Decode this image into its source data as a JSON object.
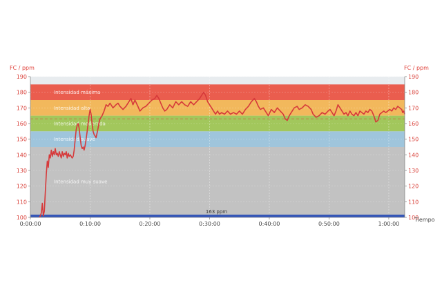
{
  "chart_data": {
    "type": "line",
    "xlabel": "Tiempo",
    "ylabel_left": "FC / ppm",
    "ylabel_right": "FC / ppm",
    "ylim": [
      100,
      190
    ],
    "xlim": [
      0,
      3760
    ],
    "yticks": [
      100,
      110,
      120,
      130,
      140,
      150,
      160,
      170,
      180,
      190
    ],
    "xticks": [
      {
        "t": 0,
        "label": "0:00:00"
      },
      {
        "t": 600,
        "label": "0:10:00"
      },
      {
        "t": 1200,
        "label": "0:20:00"
      },
      {
        "t": 1800,
        "label": "0:30:00"
      },
      {
        "t": 2400,
        "label": "0:40:00"
      },
      {
        "t": 3000,
        "label": "0:50:00"
      },
      {
        "t": 3600,
        "label": "1:00:00"
      }
    ],
    "zones": [
      {
        "label": "Intensidad máxima",
        "from": 175,
        "to": 185,
        "color": "#ea5d4e"
      },
      {
        "label": "Intensidad alta",
        "from": 165,
        "to": 175,
        "color": "#f2b85c"
      },
      {
        "label": "Intensidad moderada",
        "from": 155,
        "to": 165,
        "color": "#a2c75c"
      },
      {
        "label": "Intensidad suave",
        "from": 145,
        "to": 155,
        "color": "#9fc5dc"
      },
      {
        "label": "Intensidad muy suave",
        "from": 101,
        "to": 145,
        "color": "#c2c2c2"
      }
    ],
    "average": {
      "value": 163,
      "label": "163 ppm"
    },
    "grid": true,
    "series": [
      {
        "color": "#d6393a",
        "points": [
          [
            90,
            100
          ],
          [
            100,
            101
          ],
          [
            110,
            103
          ],
          [
            120,
            109
          ],
          [
            130,
            101
          ],
          [
            140,
            104
          ],
          [
            150,
            116
          ],
          [
            160,
            128
          ],
          [
            170,
            136
          ],
          [
            180,
            132
          ],
          [
            190,
            140
          ],
          [
            200,
            138
          ],
          [
            210,
            143
          ],
          [
            220,
            139
          ],
          [
            230,
            142
          ],
          [
            240,
            140
          ],
          [
            250,
            144
          ],
          [
            260,
            140
          ],
          [
            270,
            141
          ],
          [
            280,
            139
          ],
          [
            290,
            142
          ],
          [
            300,
            140
          ],
          [
            310,
            138
          ],
          [
            320,
            142
          ],
          [
            330,
            139
          ],
          [
            340,
            141
          ],
          [
            350,
            140
          ],
          [
            360,
            142
          ],
          [
            370,
            138
          ],
          [
            380,
            141
          ],
          [
            390,
            139
          ],
          [
            400,
            140
          ],
          [
            410,
            139
          ],
          [
            420,
            138
          ],
          [
            430,
            139
          ],
          [
            440,
            143
          ],
          [
            450,
            150
          ],
          [
            460,
            156
          ],
          [
            470,
            159
          ],
          [
            480,
            160
          ],
          [
            490,
            157
          ],
          [
            500,
            151
          ],
          [
            510,
            146
          ],
          [
            520,
            144
          ],
          [
            530,
            145
          ],
          [
            540,
            143
          ],
          [
            550,
            146
          ],
          [
            560,
            150
          ],
          [
            570,
            155
          ],
          [
            580,
            160
          ],
          [
            590,
            165
          ],
          [
            600,
            169
          ],
          [
            610,
            166
          ],
          [
            620,
            160
          ],
          [
            630,
            155
          ],
          [
            640,
            153
          ],
          [
            650,
            152
          ],
          [
            660,
            151
          ],
          [
            670,
            154
          ],
          [
            680,
            157
          ],
          [
            690,
            161
          ],
          [
            700,
            163
          ],
          [
            720,
            165
          ],
          [
            740,
            168
          ],
          [
            760,
            172
          ],
          [
            780,
            171
          ],
          [
            800,
            173
          ],
          [
            830,
            170
          ],
          [
            860,
            172
          ],
          [
            880,
            173
          ],
          [
            900,
            171
          ],
          [
            930,
            169
          ],
          [
            960,
            171
          ],
          [
            990,
            174
          ],
          [
            1010,
            176
          ],
          [
            1030,
            172
          ],
          [
            1050,
            175
          ],
          [
            1080,
            171
          ],
          [
            1100,
            168
          ],
          [
            1130,
            170
          ],
          [
            1160,
            171
          ],
          [
            1190,
            173
          ],
          [
            1220,
            175
          ],
          [
            1250,
            176
          ],
          [
            1270,
            178
          ],
          [
            1290,
            176
          ],
          [
            1310,
            173
          ],
          [
            1330,
            170
          ],
          [
            1350,
            168
          ],
          [
            1370,
            169
          ],
          [
            1400,
            172
          ],
          [
            1430,
            170
          ],
          [
            1460,
            174
          ],
          [
            1490,
            172
          ],
          [
            1520,
            174
          ],
          [
            1550,
            172
          ],
          [
            1580,
            171
          ],
          [
            1610,
            174
          ],
          [
            1640,
            172
          ],
          [
            1670,
            174
          ],
          [
            1700,
            176
          ],
          [
            1720,
            178
          ],
          [
            1740,
            180
          ],
          [
            1760,
            178
          ],
          [
            1780,
            174
          ],
          [
            1800,
            172
          ],
          [
            1820,
            170
          ],
          [
            1840,
            168
          ],
          [
            1860,
            166
          ],
          [
            1880,
            168
          ],
          [
            1900,
            166
          ],
          [
            1920,
            167
          ],
          [
            1950,
            166
          ],
          [
            1980,
            168
          ],
          [
            2010,
            166
          ],
          [
            2040,
            167
          ],
          [
            2070,
            166
          ],
          [
            2100,
            168
          ],
          [
            2130,
            166
          ],
          [
            2160,
            169
          ],
          [
            2190,
            171
          ],
          [
            2220,
            174
          ],
          [
            2250,
            176
          ],
          [
            2270,
            174
          ],
          [
            2290,
            171
          ],
          [
            2310,
            169
          ],
          [
            2340,
            170
          ],
          [
            2370,
            167
          ],
          [
            2390,
            165
          ],
          [
            2420,
            169
          ],
          [
            2450,
            167
          ],
          [
            2480,
            170
          ],
          [
            2510,
            168
          ],
          [
            2540,
            166
          ],
          [
            2560,
            163
          ],
          [
            2580,
            162
          ],
          [
            2600,
            165
          ],
          [
            2620,
            167
          ],
          [
            2650,
            170
          ],
          [
            2680,
            171
          ],
          [
            2700,
            169
          ],
          [
            2730,
            170
          ],
          [
            2760,
            172
          ],
          [
            2790,
            171
          ],
          [
            2820,
            169
          ],
          [
            2840,
            166
          ],
          [
            2870,
            164
          ],
          [
            2900,
            165
          ],
          [
            2930,
            167
          ],
          [
            2960,
            166
          ],
          [
            2990,
            168
          ],
          [
            3010,
            169
          ],
          [
            3030,
            167
          ],
          [
            3050,
            165
          ],
          [
            3070,
            168
          ],
          [
            3090,
            172
          ],
          [
            3110,
            170
          ],
          [
            3130,
            168
          ],
          [
            3150,
            166
          ],
          [
            3170,
            167
          ],
          [
            3190,
            165
          ],
          [
            3210,
            168
          ],
          [
            3230,
            166
          ],
          [
            3250,
            165
          ],
          [
            3270,
            167
          ],
          [
            3290,
            165
          ],
          [
            3310,
            168
          ],
          [
            3330,
            167
          ],
          [
            3350,
            166
          ],
          [
            3370,
            168
          ],
          [
            3390,
            167
          ],
          [
            3410,
            169
          ],
          [
            3430,
            168
          ],
          [
            3450,
            165
          ],
          [
            3470,
            161
          ],
          [
            3490,
            162
          ],
          [
            3510,
            166
          ],
          [
            3530,
            167
          ],
          [
            3550,
            168
          ],
          [
            3570,
            167
          ],
          [
            3590,
            168
          ],
          [
            3610,
            169
          ],
          [
            3630,
            168
          ],
          [
            3650,
            170
          ],
          [
            3670,
            169
          ],
          [
            3690,
            171
          ],
          [
            3710,
            170
          ],
          [
            3730,
            169
          ],
          [
            3740,
            167
          ],
          [
            3750,
            168
          ],
          [
            3760,
            166
          ]
        ]
      }
    ]
  }
}
